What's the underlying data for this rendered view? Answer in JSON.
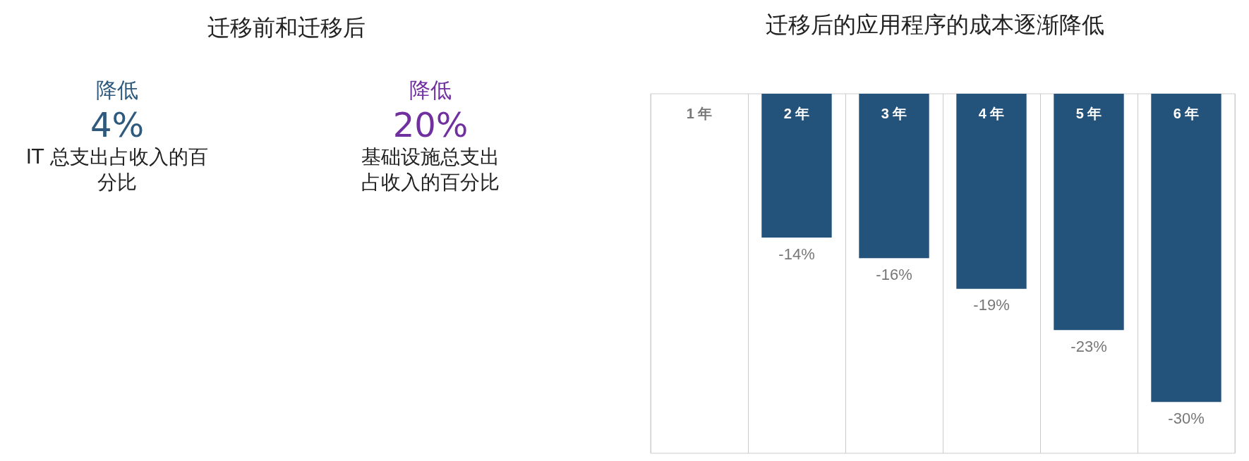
{
  "chart_data": [
    {
      "type": "other",
      "title": "迁移前和迁移后",
      "annotations": [
        "降低",
        "4%",
        "IT 总支出占收入的百分比",
        "降低",
        "20%",
        "基础设施总支出占收入的百分比"
      ],
      "colors": [
        "#2f5a7e",
        "#7030a0"
      ]
    },
    {
      "type": "bar",
      "title": "迁移后的应用程序的成本逐渐降低",
      "categories": [
        "1 年",
        "2 年",
        "3 年",
        "4 年",
        "5 年",
        "6 年"
      ],
      "values": [
        0,
        -14,
        -16,
        -19,
        -23,
        -30
      ],
      "value_labels": [
        null,
        "-14%",
        "-16%",
        "-19%",
        "-23%",
        "-30%"
      ],
      "color": "#23527a",
      "ylim": [
        -35,
        0
      ],
      "grid": "x"
    }
  ]
}
